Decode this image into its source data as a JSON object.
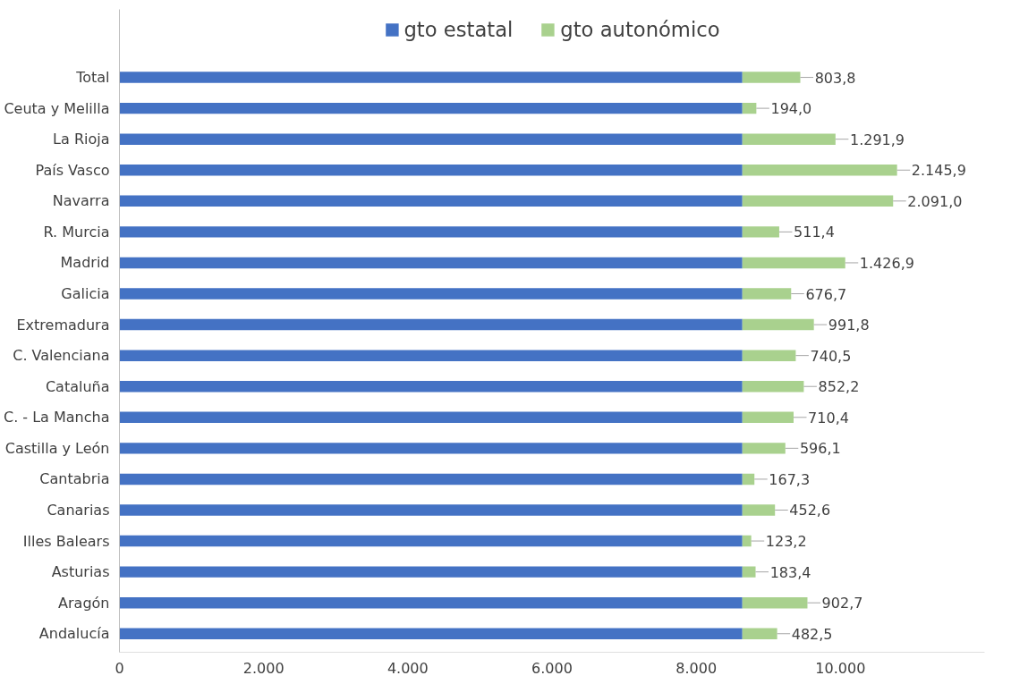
{
  "chart_data": {
    "type": "bar",
    "orientation": "horizontal",
    "stacked": true,
    "categories": [
      "Total",
      "Ceuta y Melilla",
      "La Rioja",
      "País Vasco",
      "Navarra",
      "R. Murcia",
      "Madrid",
      "Galicia",
      "Extremadura",
      "C. Valenciana",
      "Cataluña",
      "C. - La Mancha",
      "Castilla y León",
      "Cantabria",
      "Canarias",
      "Illes Balears",
      "Asturias",
      "Aragón",
      "Andalucía"
    ],
    "series": [
      {
        "name": "gto estatal",
        "color": "#4472c4",
        "values": [
          8640,
          8640,
          8640,
          8640,
          8640,
          8640,
          8640,
          8640,
          8640,
          8640,
          8640,
          8640,
          8640,
          8640,
          8640,
          8640,
          8640,
          8640,
          8640
        ]
      },
      {
        "name": "gto autonómico",
        "color": "#a9d18e",
        "values": [
          803.8,
          194.0,
          1291.9,
          2145.9,
          2091.0,
          511.4,
          1426.9,
          676.7,
          991.8,
          740.5,
          852.2,
          710.4,
          596.1,
          167.3,
          452.6,
          123.2,
          183.4,
          902.7,
          482.5
        ],
        "value_labels": [
          "803,8",
          "194,0",
          "1.291,9",
          "2.145,9",
          "2.091,0",
          "511,4",
          "1.426,9",
          "676,7",
          "991,8",
          "740,5",
          "852,2",
          "710,4",
          "596,1",
          "167,3",
          "452,6",
          "123,2",
          "183,4",
          "902,7",
          "482,5"
        ]
      }
    ],
    "xlim": [
      0,
      12000
    ],
    "xticks": [
      {
        "value": 0,
        "label": "0"
      },
      {
        "value": 2000,
        "label": "2.000"
      },
      {
        "value": 4000,
        "label": "4.000"
      },
      {
        "value": 6000,
        "label": "6.000"
      },
      {
        "value": 8000,
        "label": "8.000"
      },
      {
        "value": 10000,
        "label": "10.000"
      }
    ],
    "grid": false,
    "legend": "top"
  }
}
